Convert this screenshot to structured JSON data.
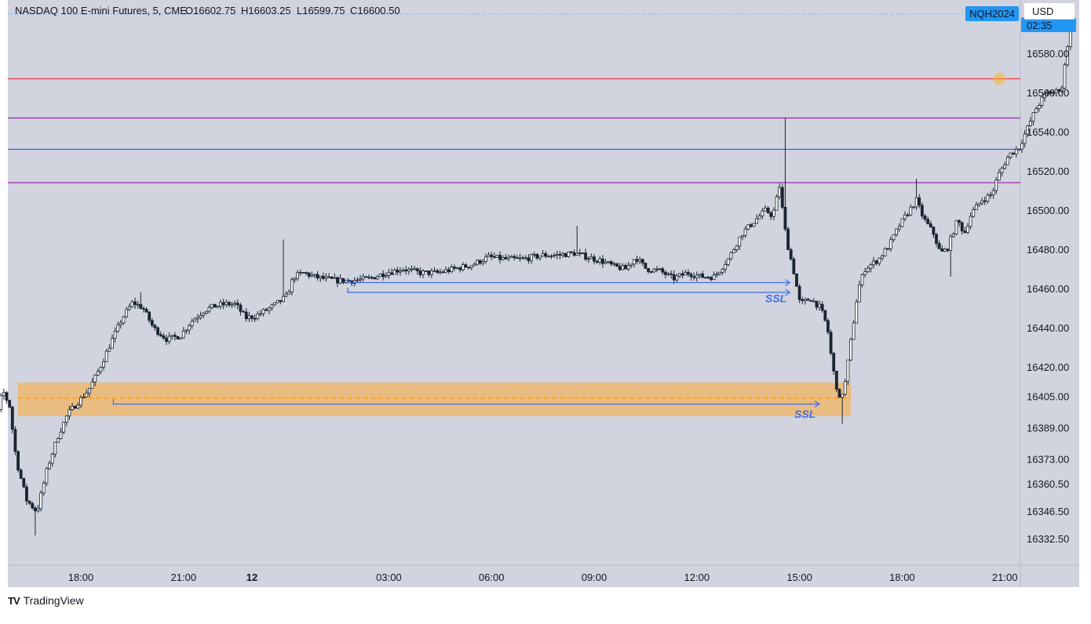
{
  "header": {
    "symbol": "NASDAQ 100 E-mini Futures, 5, CME",
    "open": "O16602.75",
    "high": "H16603.25",
    "low": "L16599.75",
    "close": "C16600.50"
  },
  "currency": "USD",
  "price_badge": {
    "symbol": "NQH2024",
    "countdown": "02:35"
  },
  "brand": {
    "name": "TradingView",
    "logo": "TV"
  },
  "colors": {
    "background": "#d1d4de",
    "candle": "#1a2332",
    "red_line": "#f23645",
    "purple_line": "#9c27b0",
    "blue_line": "#2962ff",
    "zone": "#f0b463",
    "zone_mid": "#ff9800",
    "arrow": "#3d6ce4",
    "badge": "#2196f3"
  },
  "chart_data": {
    "type": "candlestick",
    "title": "NASDAQ 100 E-mini Futures, 5, CME",
    "y_axis": {
      "ticks": [
        {
          "label": "16580.00",
          "value": 16580
        },
        {
          "label": "16560.00",
          "value": 16560
        },
        {
          "label": "16540.00",
          "value": 16540
        },
        {
          "label": "16520.00",
          "value": 16520
        },
        {
          "label": "16500.00",
          "value": 16500
        },
        {
          "label": "16480.00",
          "value": 16480
        },
        {
          "label": "16460.00",
          "value": 16460
        },
        {
          "label": "16440.00",
          "value": 16440
        },
        {
          "label": "16420.00",
          "value": 16420
        },
        {
          "label": "16405.00",
          "value": 16405
        },
        {
          "label": "16389.00",
          "value": 16389
        },
        {
          "label": "16373.00",
          "value": 16373
        },
        {
          "label": "16360.50",
          "value": 16360.5
        },
        {
          "label": "16346.50",
          "value": 16346.5
        },
        {
          "label": "16332.50",
          "value": 16332.5
        }
      ]
    },
    "x_axis": {
      "ticks": [
        {
          "label": "18:00",
          "hour": 3,
          "bold": false
        },
        {
          "label": "21:00",
          "hour": 6,
          "bold": false
        },
        {
          "label": "12",
          "hour": 8,
          "bold": true
        },
        {
          "label": "03:00",
          "hour": 12,
          "bold": false
        },
        {
          "label": "06:00",
          "hour": 15,
          "bold": false
        },
        {
          "label": "09:00",
          "hour": 18,
          "bold": false
        },
        {
          "label": "12:00",
          "hour": 21,
          "bold": false
        },
        {
          "label": "15:00",
          "hour": 24,
          "bold": false
        },
        {
          "label": "18:00",
          "hour": 27,
          "bold": false
        },
        {
          "label": "21:00",
          "hour": 30,
          "bold": false
        }
      ]
    },
    "horizontal_lines": [
      {
        "name": "red",
        "price": 16567,
        "color": "#f23645"
      },
      {
        "name": "purple-upper",
        "price": 16547,
        "color": "#9c27b0"
      },
      {
        "name": "blue",
        "price": 16531,
        "color": "#2962ff"
      },
      {
        "name": "purple-lower",
        "price": 16514,
        "color": "#9c27b0"
      }
    ],
    "zone": {
      "price_top": 16412,
      "price_bottom": 16395,
      "mid": 16404,
      "hour_start": 1.15,
      "hour_end": 25.5
    },
    "liquidity_arrows": [
      {
        "label": "SSL",
        "price": 16463,
        "hour_start": 10.8,
        "hour_end": 23.72
      },
      {
        "label": "SSL",
        "price": 16458,
        "hour_start": 10.8,
        "hour_end": 23.72
      },
      {
        "label": "SSL",
        "price": 16401,
        "hour_start": 3.95,
        "hour_end": 24.58
      }
    ],
    "ssl_labels": [
      {
        "text": "SSL",
        "price": 16453,
        "hour": 23.0
      },
      {
        "text": "SSL",
        "price": 16394,
        "hour": 23.85
      }
    ],
    "anchors": [
      [
        0.0,
        16378
      ],
      [
        0.3,
        16380
      ],
      [
        0.6,
        16392
      ],
      [
        0.8,
        16408
      ],
      [
        1.0,
        16400
      ],
      [
        1.2,
        16372
      ],
      [
        1.5,
        16352
      ],
      [
        1.8,
        16346
      ],
      [
        2.1,
        16368
      ],
      [
        2.4,
        16384
      ],
      [
        2.7,
        16396
      ],
      [
        3.0,
        16402
      ],
      [
        3.3,
        16408
      ],
      [
        3.6,
        16418
      ],
      [
        4.0,
        16434
      ],
      [
        4.3,
        16445
      ],
      [
        4.6,
        16453
      ],
      [
        4.9,
        16450
      ],
      [
        5.2,
        16440
      ],
      [
        5.6,
        16434
      ],
      [
        6.0,
        16436
      ],
      [
        6.3,
        16443
      ],
      [
        6.7,
        16449
      ],
      [
        7.0,
        16451
      ],
      [
        7.3,
        16452
      ],
      [
        7.6,
        16452
      ],
      [
        7.9,
        16445
      ],
      [
        8.2,
        16446
      ],
      [
        8.7,
        16451
      ],
      [
        9.1,
        16456
      ],
      [
        9.3,
        16466
      ],
      [
        9.6,
        16468
      ],
      [
        9.9,
        16466
      ],
      [
        10.2,
        16465
      ],
      [
        10.6,
        16464
      ],
      [
        11.0,
        16464
      ],
      [
        11.5,
        16465
      ],
      [
        12.0,
        16468
      ],
      [
        12.5,
        16470
      ],
      [
        13.0,
        16468
      ],
      [
        13.5,
        16468
      ],
      [
        14.0,
        16470
      ],
      [
        14.5,
        16472
      ],
      [
        15.0,
        16476
      ],
      [
        15.5,
        16475
      ],
      [
        16.0,
        16475
      ],
      [
        16.6,
        16477
      ],
      [
        17.0,
        16477
      ],
      [
        17.5,
        16478
      ],
      [
        17.9,
        16476
      ],
      [
        18.3,
        16474
      ],
      [
        18.7,
        16471
      ],
      [
        19.0,
        16470
      ],
      [
        19.3,
        16476
      ],
      [
        19.6,
        16470
      ],
      [
        20.0,
        16469
      ],
      [
        20.4,
        16465
      ],
      [
        20.8,
        16468
      ],
      [
        21.2,
        16466
      ],
      [
        21.6,
        16466
      ],
      [
        22.0,
        16475
      ],
      [
        22.4,
        16488
      ],
      [
        22.8,
        16495
      ],
      [
        23.1,
        16500
      ],
      [
        23.3,
        16497
      ],
      [
        23.5,
        16512
      ],
      [
        23.7,
        16485
      ],
      [
        23.9,
        16470
      ],
      [
        24.1,
        16452
      ],
      [
        24.4,
        16455
      ],
      [
        24.7,
        16450
      ],
      [
        24.9,
        16440
      ],
      [
        25.05,
        16420
      ],
      [
        25.25,
        16403
      ],
      [
        25.4,
        16410
      ],
      [
        25.6,
        16435
      ],
      [
        25.8,
        16460
      ],
      [
        26.0,
        16470
      ],
      [
        26.4,
        16475
      ],
      [
        26.7,
        16482
      ],
      [
        27.0,
        16492
      ],
      [
        27.3,
        16500
      ],
      [
        27.5,
        16505
      ],
      [
        27.7,
        16496
      ],
      [
        28.0,
        16488
      ],
      [
        28.2,
        16478
      ],
      [
        28.4,
        16480
      ],
      [
        28.7,
        16495
      ],
      [
        28.9,
        16488
      ],
      [
        29.1,
        16498
      ],
      [
        29.4,
        16505
      ],
      [
        29.7,
        16508
      ],
      [
        29.9,
        16518
      ],
      [
        30.2,
        16528
      ],
      [
        30.5,
        16532
      ],
      [
        30.7,
        16540
      ],
      [
        31.0,
        16552
      ],
      [
        31.3,
        16560
      ],
      [
        31.55,
        16560
      ],
      [
        31.75,
        16563
      ],
      [
        31.9,
        16582
      ],
      [
        32.02,
        16600
      ]
    ],
    "spikes": [
      {
        "hour": 4.75,
        "type": "high",
        "price": 16458
      },
      {
        "hour": 8.92,
        "type": "high",
        "price": 16485
      },
      {
        "hour": 17.5,
        "type": "high",
        "price": 16492
      },
      {
        "hour": 23.6,
        "type": "high",
        "price": 16547
      },
      {
        "hour": 25.25,
        "type": "low",
        "price": 16391
      },
      {
        "hour": 1.7,
        "type": "low",
        "price": 16334
      },
      {
        "hour": 0.05,
        "type": "low",
        "price": 16342
      },
      {
        "hour": 27.45,
        "type": "high",
        "price": 16516
      },
      {
        "hour": 28.4,
        "type": "low",
        "price": 16466
      }
    ]
  }
}
